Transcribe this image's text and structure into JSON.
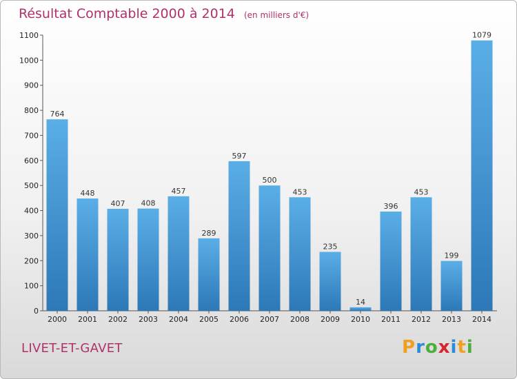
{
  "page": {
    "title": "Résultat Comptable 2000 à 2014",
    "unit_note": "(en milliers d'€)",
    "commune": "LIVET-ET-GAVET",
    "logo": {
      "letters": [
        "P",
        "r",
        "o",
        "x",
        "i",
        "t",
        "i"
      ],
      "colors": [
        "#f0a020",
        "#2c8ad6",
        "#4cae3c",
        "#d8242c",
        "#2c8ad6",
        "#f0a020",
        "#4cae3c"
      ]
    }
  },
  "chart_data": {
    "type": "bar",
    "title": "Résultat Comptable 2000 à 2014",
    "ylabel": "(en milliers d'€)",
    "xlabel": "",
    "categories": [
      "2000",
      "2001",
      "2002",
      "2003",
      "2004",
      "2005",
      "2006",
      "2007",
      "2008",
      "2009",
      "2010",
      "2011",
      "2012",
      "2013",
      "2014"
    ],
    "values": [
      764,
      448,
      407,
      408,
      457,
      289,
      597,
      500,
      453,
      235,
      14,
      396,
      453,
      199,
      1079
    ],
    "ylim": [
      0,
      1100
    ],
    "yticks": [
      0,
      100,
      200,
      300,
      400,
      500,
      600,
      700,
      800,
      900,
      1000,
      1100
    ],
    "grid": false,
    "bar_color_top": "#5aaee6",
    "bar_color_bottom": "#2d78b8"
  }
}
